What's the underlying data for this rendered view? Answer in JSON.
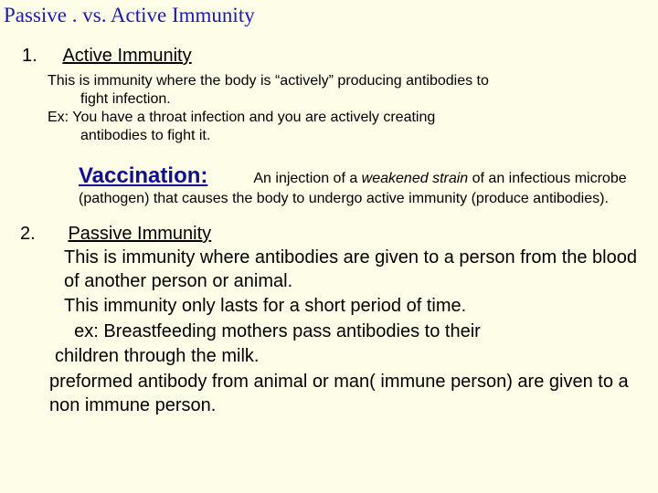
{
  "colors": {
    "background": "#fefde8",
    "title_color": "#1a1aaf",
    "vacc_color": "#0f0f8f",
    "text_color": "#000000"
  },
  "title": "Passive . vs. Active Immunity",
  "s1": {
    "num": "1.",
    "heading": "Active Immunity",
    "p1a": "This is immunity where the body is “actively” producing antibodies to",
    "p1b": "fight infection.",
    "p2a": "Ex:  You have a throat infection and you are actively creating",
    "p2b": "antibodies to fight it.",
    "vacc_label": "Vaccination:",
    "vacc_1a": "An injection of a ",
    "vacc_1b": "weakened strain",
    "vacc_1c": " of an",
    "vacc_2": "infectious microbe (pathogen) that causes the body to undergo active immunity (produce antibodies)."
  },
  "s2": {
    "num": "2.",
    "heading": "Passive Immunity",
    "p1": "This is immunity where antibodies are given to a person from the blood of another person or animal.",
    "p2": "This immunity only lasts for a short period of time.",
    "p3a": "  ex:  Breastfeeding mothers pass antibodies to their",
    "p3b": "children through the milk.",
    "p4": "preformed antibody from animal or man( immune person) are given to a non immune person."
  }
}
